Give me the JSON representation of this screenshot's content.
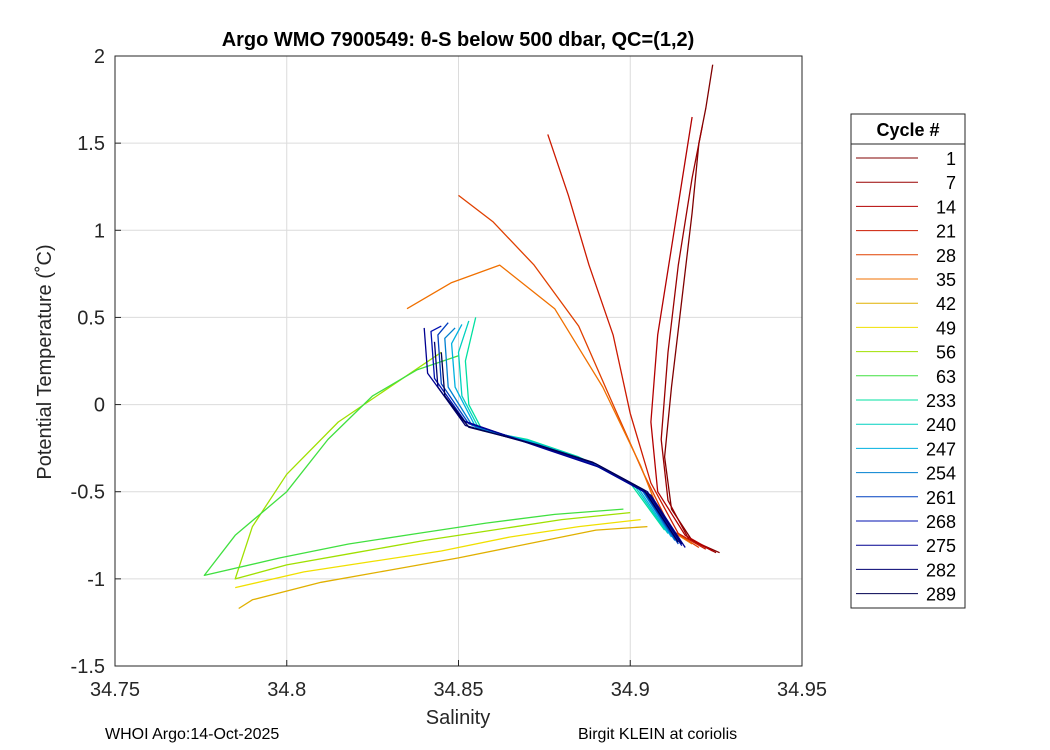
{
  "chart_data": {
    "type": "line",
    "title": "Argo WMO 7900549: θ-S below 500 dbar,  QC=(1,2)",
    "xlabel": "Salinity",
    "ylabel": "Potential Temperature (˚C)",
    "xlim": [
      34.75,
      34.95
    ],
    "ylim": [
      -1.5,
      2
    ],
    "xticks": [
      "34.75",
      "34.8",
      "34.85",
      "34.9",
      "34.95"
    ],
    "yticks": [
      "2",
      "1.5",
      "1",
      "0.5",
      "0",
      "-0.5",
      "-1",
      "-1.5"
    ],
    "grid": true,
    "legend_title": "Cycle #",
    "legend_position": "right",
    "series": [
      {
        "name": "1",
        "color": "#800000",
        "points": [
          [
            34.926,
            -0.85
          ],
          [
            34.918,
            -0.78
          ],
          [
            34.912,
            -0.6
          ],
          [
            34.91,
            -0.3
          ],
          [
            34.912,
            0.1
          ],
          [
            34.915,
            0.6
          ],
          [
            34.918,
            1.1
          ],
          [
            34.92,
            1.5
          ],
          [
            34.922,
            1.7
          ],
          [
            34.924,
            1.95
          ]
        ]
      },
      {
        "name": "7",
        "color": "#990000",
        "points": [
          [
            34.925,
            -0.85
          ],
          [
            34.917,
            -0.77
          ],
          [
            34.911,
            -0.55
          ],
          [
            34.909,
            -0.2
          ],
          [
            34.911,
            0.3
          ],
          [
            34.914,
            0.8
          ],
          [
            34.918,
            1.3
          ],
          [
            34.921,
            1.6
          ]
        ]
      },
      {
        "name": "14",
        "color": "#b30000",
        "points": [
          [
            34.924,
            -0.84
          ],
          [
            34.916,
            -0.75
          ],
          [
            34.908,
            -0.5
          ],
          [
            34.906,
            -0.1
          ],
          [
            34.908,
            0.4
          ],
          [
            34.912,
            0.9
          ],
          [
            34.916,
            1.4
          ],
          [
            34.918,
            1.65
          ]
        ]
      },
      {
        "name": "21",
        "color": "#cc1a00",
        "points": [
          [
            34.922,
            -0.83
          ],
          [
            34.914,
            -0.74
          ],
          [
            34.906,
            -0.45
          ],
          [
            34.9,
            -0.05
          ],
          [
            34.895,
            0.4
          ],
          [
            34.888,
            0.8
          ],
          [
            34.882,
            1.2
          ],
          [
            34.876,
            1.55
          ]
        ]
      },
      {
        "name": "28",
        "color": "#e04000",
        "points": [
          [
            34.92,
            -0.82
          ],
          [
            34.912,
            -0.72
          ],
          [
            34.904,
            -0.4
          ],
          [
            34.895,
            0.0
          ],
          [
            34.885,
            0.45
          ],
          [
            34.872,
            0.8
          ],
          [
            34.86,
            1.05
          ],
          [
            34.85,
            1.2
          ]
        ]
      },
      {
        "name": "35",
        "color": "#f07000",
        "points": [
          [
            34.918,
            -0.8
          ],
          [
            34.91,
            -0.7
          ],
          [
            34.903,
            -0.35
          ],
          [
            34.892,
            0.1
          ],
          [
            34.878,
            0.55
          ],
          [
            34.862,
            0.8
          ],
          [
            34.848,
            0.7
          ],
          [
            34.835,
            0.55
          ]
        ]
      },
      {
        "name": "42",
        "color": "#e0b000",
        "points": [
          [
            34.905,
            -0.7
          ],
          [
            34.89,
            -0.72
          ],
          [
            34.87,
            -0.8
          ],
          [
            34.85,
            -0.88
          ],
          [
            34.83,
            -0.95
          ],
          [
            34.81,
            -1.02
          ],
          [
            34.79,
            -1.12
          ],
          [
            34.786,
            -1.17
          ]
        ]
      },
      {
        "name": "49",
        "color": "#f0e000",
        "points": [
          [
            34.903,
            -0.66
          ],
          [
            34.885,
            -0.7
          ],
          [
            34.865,
            -0.76
          ],
          [
            34.845,
            -0.84
          ],
          [
            34.825,
            -0.9
          ],
          [
            34.805,
            -0.96
          ],
          [
            34.785,
            -1.05
          ]
        ]
      },
      {
        "name": "56",
        "color": "#a0e000",
        "points": [
          [
            34.9,
            -0.62
          ],
          [
            34.88,
            -0.66
          ],
          [
            34.86,
            -0.72
          ],
          [
            34.84,
            -0.78
          ],
          [
            34.82,
            -0.85
          ],
          [
            34.8,
            -0.92
          ],
          [
            34.785,
            -1.0
          ],
          [
            34.79,
            -0.7
          ],
          [
            34.8,
            -0.4
          ],
          [
            34.815,
            -0.1
          ],
          [
            34.83,
            0.1
          ],
          [
            34.845,
            0.3
          ]
        ]
      },
      {
        "name": "63",
        "color": "#40e040",
        "points": [
          [
            34.898,
            -0.6
          ],
          [
            34.878,
            -0.63
          ],
          [
            34.858,
            -0.68
          ],
          [
            34.838,
            -0.74
          ],
          [
            34.818,
            -0.8
          ],
          [
            34.798,
            -0.88
          ],
          [
            34.776,
            -0.98
          ],
          [
            34.785,
            -0.75
          ],
          [
            34.8,
            -0.5
          ],
          [
            34.812,
            -0.2
          ],
          [
            34.825,
            0.05
          ],
          [
            34.838,
            0.2
          ],
          [
            34.85,
            0.28
          ]
        ]
      },
      {
        "name": "233",
        "color": "#00e0a0",
        "points": [
          [
            34.91,
            -0.72
          ],
          [
            34.9,
            -0.45
          ],
          [
            34.885,
            -0.3
          ],
          [
            34.87,
            -0.2
          ],
          [
            34.857,
            -0.15
          ],
          [
            34.853,
            0.0
          ],
          [
            34.852,
            0.25
          ],
          [
            34.855,
            0.5
          ]
        ]
      },
      {
        "name": "240",
        "color": "#00d0c0",
        "points": [
          [
            34.911,
            -0.74
          ],
          [
            34.901,
            -0.46
          ],
          [
            34.886,
            -0.31
          ],
          [
            34.871,
            -0.21
          ],
          [
            34.856,
            -0.14
          ],
          [
            34.851,
            0.05
          ],
          [
            34.85,
            0.3
          ],
          [
            34.853,
            0.48
          ]
        ]
      },
      {
        "name": "247",
        "color": "#00b0e0",
        "points": [
          [
            34.912,
            -0.76
          ],
          [
            34.902,
            -0.47
          ],
          [
            34.887,
            -0.32
          ],
          [
            34.872,
            -0.22
          ],
          [
            34.855,
            -0.13
          ],
          [
            34.849,
            0.1
          ],
          [
            34.848,
            0.35
          ],
          [
            34.851,
            0.46
          ]
        ]
      },
      {
        "name": "254",
        "color": "#0080d0",
        "points": [
          [
            34.913,
            -0.78
          ],
          [
            34.903,
            -0.48
          ],
          [
            34.888,
            -0.33
          ],
          [
            34.873,
            -0.23
          ],
          [
            34.854,
            -0.12
          ],
          [
            34.847,
            0.1
          ],
          [
            34.846,
            0.38
          ],
          [
            34.849,
            0.44
          ]
        ]
      },
      {
        "name": "261",
        "color": "#0040c0",
        "points": [
          [
            34.914,
            -0.8
          ],
          [
            34.904,
            -0.5
          ],
          [
            34.889,
            -0.34
          ],
          [
            34.874,
            -0.24
          ],
          [
            34.853,
            -0.11
          ],
          [
            34.845,
            0.12
          ],
          [
            34.844,
            0.4
          ],
          [
            34.847,
            0.47
          ]
        ]
      },
      {
        "name": "268",
        "color": "#0010b0",
        "points": [
          [
            34.915,
            -0.81
          ],
          [
            34.905,
            -0.51
          ],
          [
            34.89,
            -0.35
          ],
          [
            34.875,
            -0.25
          ],
          [
            34.852,
            -0.1
          ],
          [
            34.843,
            0.15
          ],
          [
            34.842,
            0.42
          ],
          [
            34.845,
            0.45
          ]
        ]
      },
      {
        "name": "275",
        "color": "#000090",
        "points": [
          [
            34.916,
            -0.82
          ],
          [
            34.906,
            -0.52
          ],
          [
            34.891,
            -0.36
          ],
          [
            34.876,
            -0.26
          ],
          [
            34.851,
            -0.09
          ],
          [
            34.841,
            0.18
          ],
          [
            34.84,
            0.44
          ]
        ]
      },
      {
        "name": "282",
        "color": "#000070",
        "points": [
          [
            34.915,
            -0.8
          ],
          [
            34.905,
            -0.5
          ],
          [
            34.89,
            -0.34
          ],
          [
            34.874,
            -0.24
          ],
          [
            34.852,
            -0.12
          ],
          [
            34.844,
            0.1
          ],
          [
            34.843,
            0.36
          ]
        ]
      },
      {
        "name": "289",
        "color": "#000050",
        "points": [
          [
            34.914,
            -0.79
          ],
          [
            34.904,
            -0.49
          ],
          [
            34.889,
            -0.33
          ],
          [
            34.873,
            -0.23
          ],
          [
            34.853,
            -0.13
          ],
          [
            34.846,
            0.05
          ],
          [
            34.845,
            0.3
          ]
        ]
      }
    ]
  },
  "footer": {
    "left": "WHOI Argo:14-Oct-2025",
    "right": "Birgit KLEIN at coriolis"
  }
}
